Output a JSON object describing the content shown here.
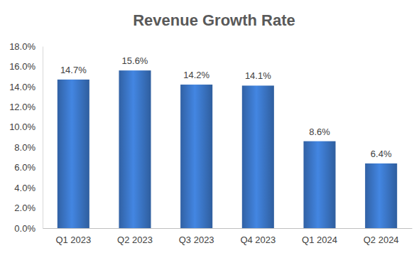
{
  "chart_data": {
    "type": "bar",
    "title": "Revenue Growth Rate",
    "categories": [
      "Q1 2023",
      "Q2 2023",
      "Q3 2023",
      "Q4 2023",
      "Q1 2024",
      "Q2 2024"
    ],
    "values": [
      14.7,
      15.6,
      14.2,
      14.1,
      8.6,
      6.4
    ],
    "value_labels": [
      "14.7%",
      "15.6%",
      "14.2%",
      "14.1%",
      "8.6%",
      "6.4%"
    ],
    "data_labels": true,
    "color": "#3a74c4",
    "ylim": [
      0,
      18
    ],
    "yticks": [
      {
        "value": 0,
        "label": "0.0%"
      },
      {
        "value": 2,
        "label": "2.0%"
      },
      {
        "value": 4,
        "label": "4.0%"
      },
      {
        "value": 6,
        "label": "6.0%"
      },
      {
        "value": 8,
        "label": "8.0%"
      },
      {
        "value": 10,
        "label": "10.0%"
      },
      {
        "value": 12,
        "label": "12.0%"
      },
      {
        "value": 14,
        "label": "14.0%"
      },
      {
        "value": 16,
        "label": "16.0%"
      },
      {
        "value": 18,
        "label": "18.0%"
      }
    ],
    "grid": false
  }
}
